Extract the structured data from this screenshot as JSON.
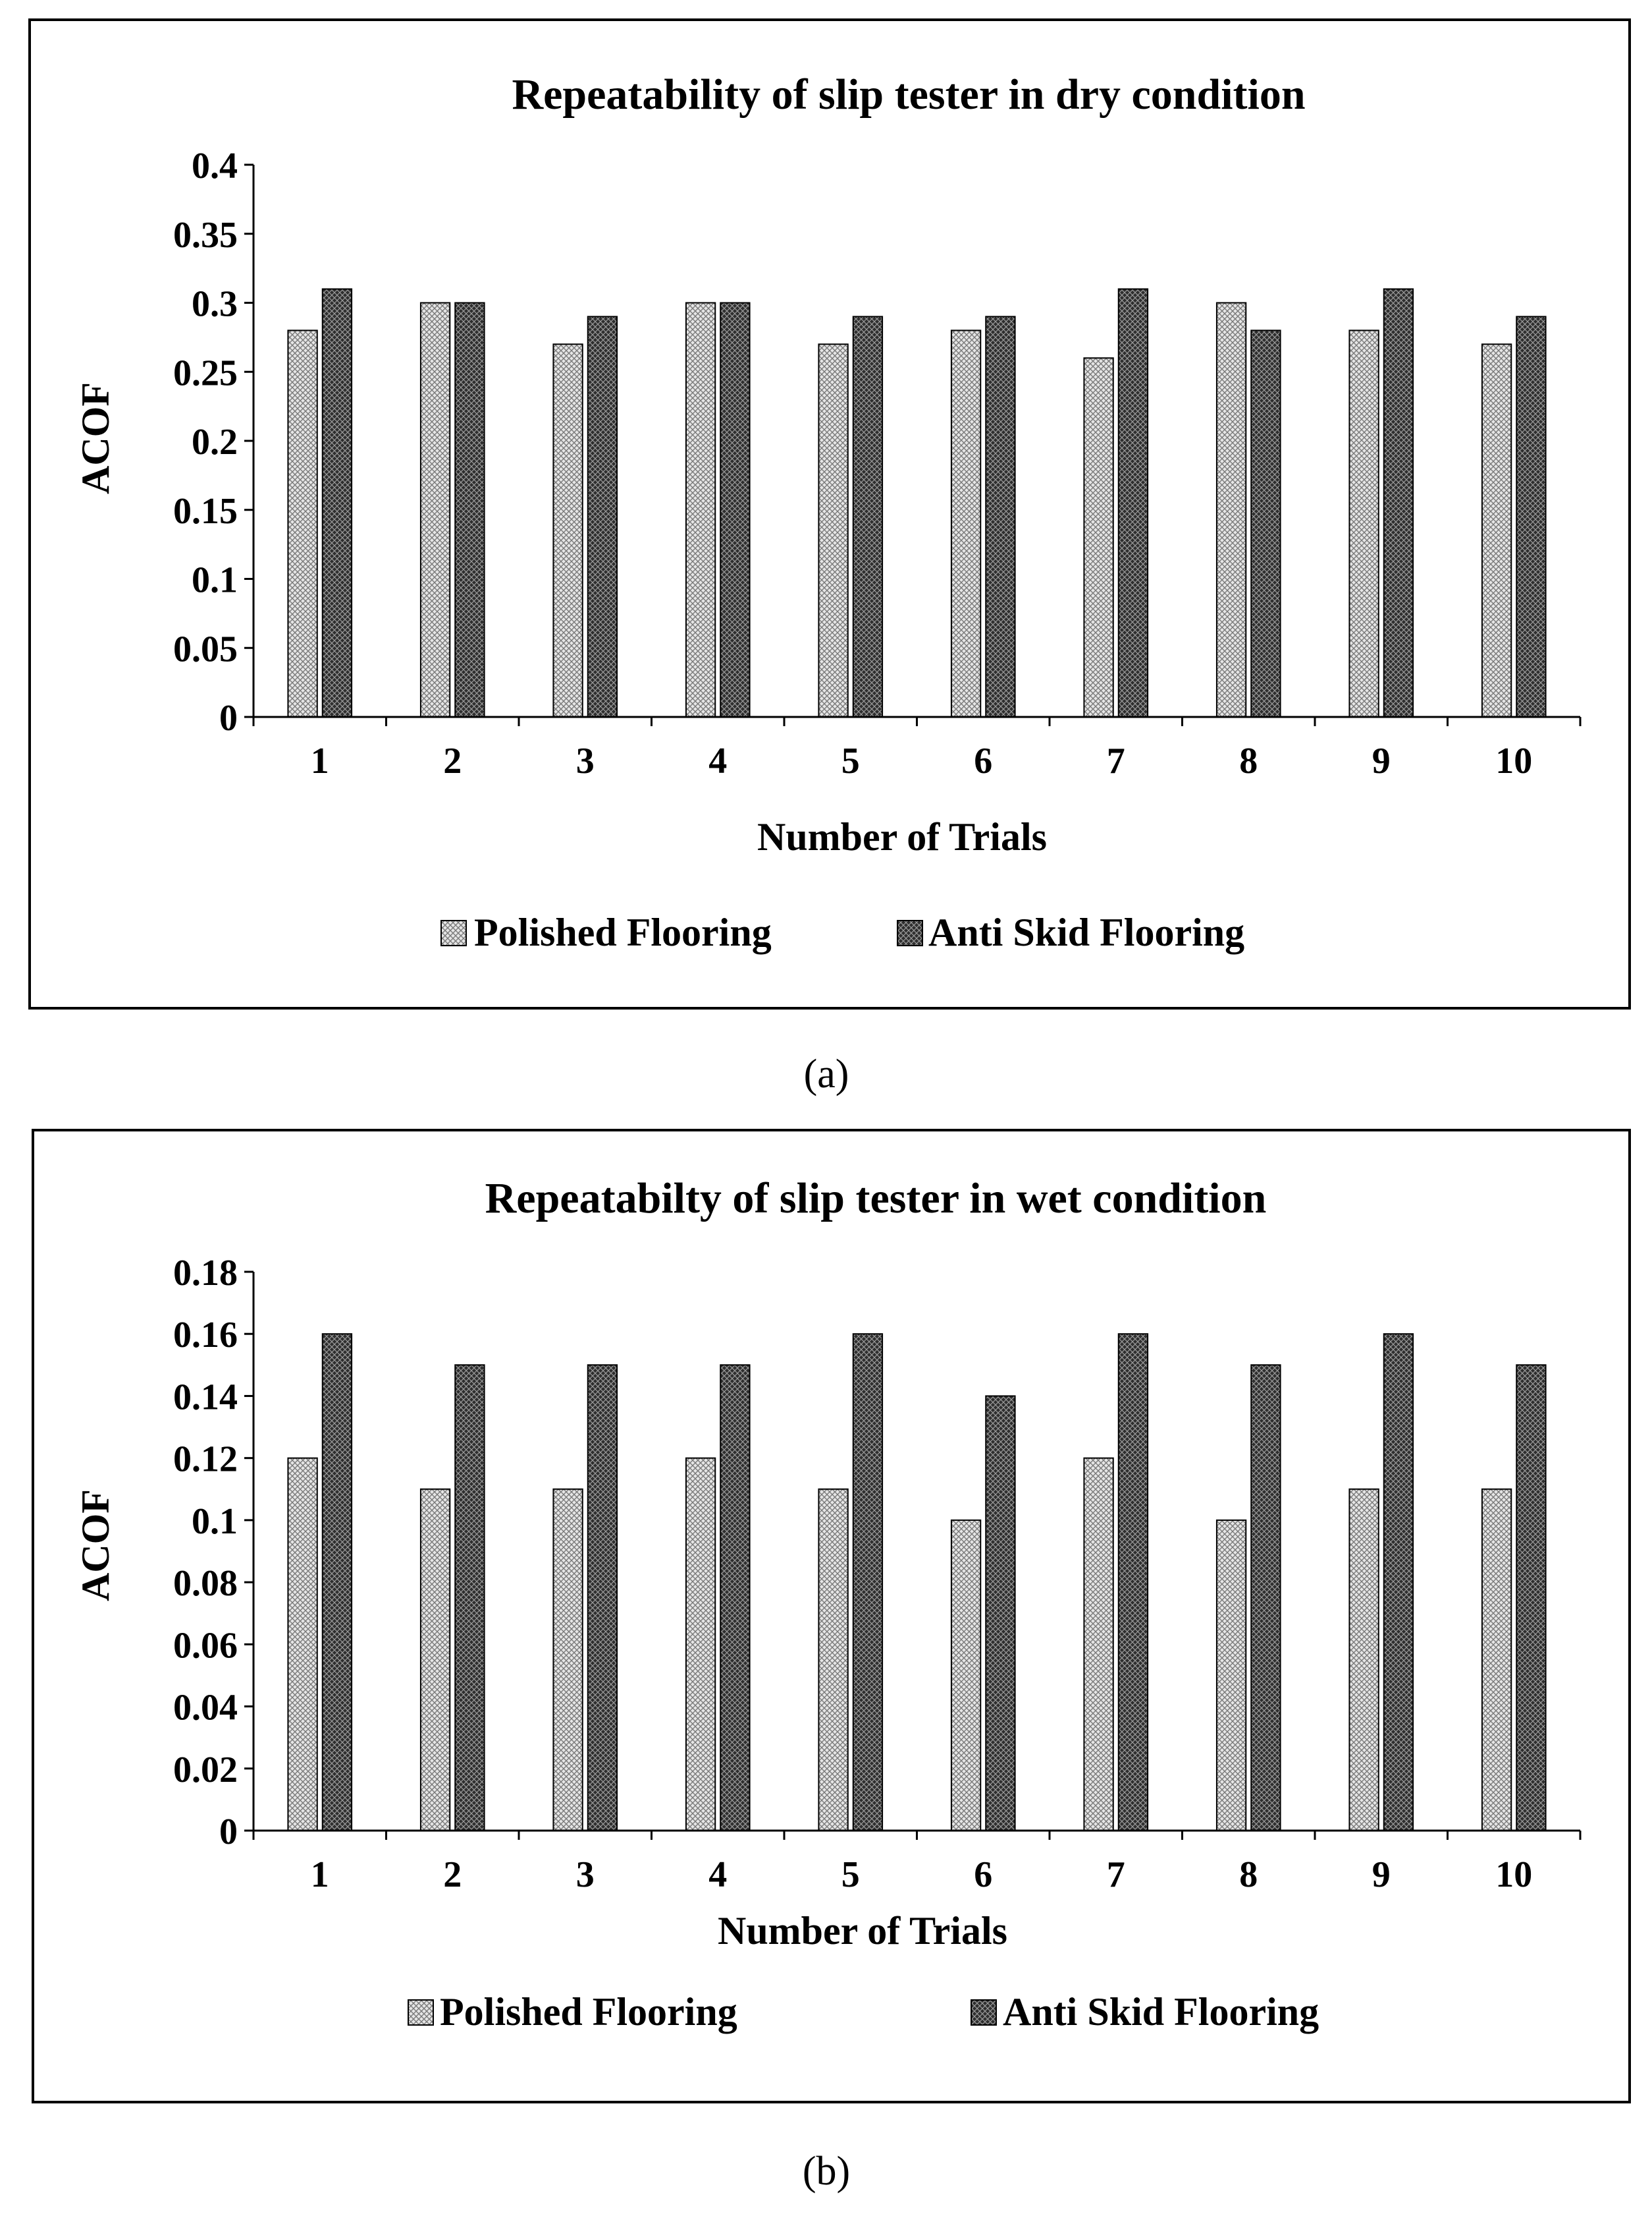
{
  "colors": {
    "frame": "#000000",
    "polished": "#d9d9d9",
    "anti_skid": "#3a3a3a",
    "background": "#ffffff"
  },
  "chart_data": [
    {
      "type": "bar",
      "title": "Repeatability of slip tester in dry condition",
      "xlabel": "Number of Trials",
      "ylabel": "ACOF",
      "panel_label": "(a)",
      "categories": [
        "1",
        "2",
        "3",
        "4",
        "5",
        "6",
        "7",
        "8",
        "9",
        "10"
      ],
      "ylim": [
        0,
        0.4
      ],
      "yticks": [
        "0",
        "0.05",
        "0.1",
        "0.15",
        "0.2",
        "0.25",
        "0.3",
        "0.35",
        "0.4"
      ],
      "yticks_values": [
        0,
        0.05,
        0.1,
        0.15,
        0.2,
        0.25,
        0.3,
        0.35,
        0.4
      ],
      "legend_position": "bottom",
      "series": [
        {
          "name": "Polished Flooring",
          "pattern": "light",
          "values": [
            0.28,
            0.3,
            0.27,
            0.3,
            0.27,
            0.28,
            0.26,
            0.3,
            0.28,
            0.27
          ]
        },
        {
          "name": "Anti Skid Flooring",
          "pattern": "dark",
          "values": [
            0.31,
            0.3,
            0.29,
            0.3,
            0.29,
            0.29,
            0.31,
            0.28,
            0.31,
            0.29
          ]
        }
      ]
    },
    {
      "type": "bar",
      "title": "Repeatabilty of slip tester in wet condition",
      "xlabel": "Number of Trials",
      "ylabel": "ACOF",
      "panel_label": "(b)",
      "categories": [
        "1",
        "2",
        "3",
        "4",
        "5",
        "6",
        "7",
        "8",
        "9",
        "10"
      ],
      "ylim": [
        0,
        0.18
      ],
      "yticks": [
        "0",
        "0.02",
        "0.04",
        "0.06",
        "0.08",
        "0.1",
        "0.12",
        "0.14",
        "0.16",
        "0.18"
      ],
      "yticks_values": [
        0,
        0.02,
        0.04,
        0.06,
        0.08,
        0.1,
        0.12,
        0.14,
        0.16,
        0.18
      ],
      "legend_position": "bottom",
      "series": [
        {
          "name": "Polished Flooring",
          "pattern": "light",
          "values": [
            0.12,
            0.11,
            0.11,
            0.12,
            0.11,
            0.1,
            0.12,
            0.1,
            0.11,
            0.11
          ]
        },
        {
          "name": "Anti Skid Flooring",
          "pattern": "dark",
          "values": [
            0.16,
            0.15,
            0.15,
            0.15,
            0.16,
            0.14,
            0.16,
            0.15,
            0.16,
            0.15
          ]
        }
      ]
    }
  ]
}
